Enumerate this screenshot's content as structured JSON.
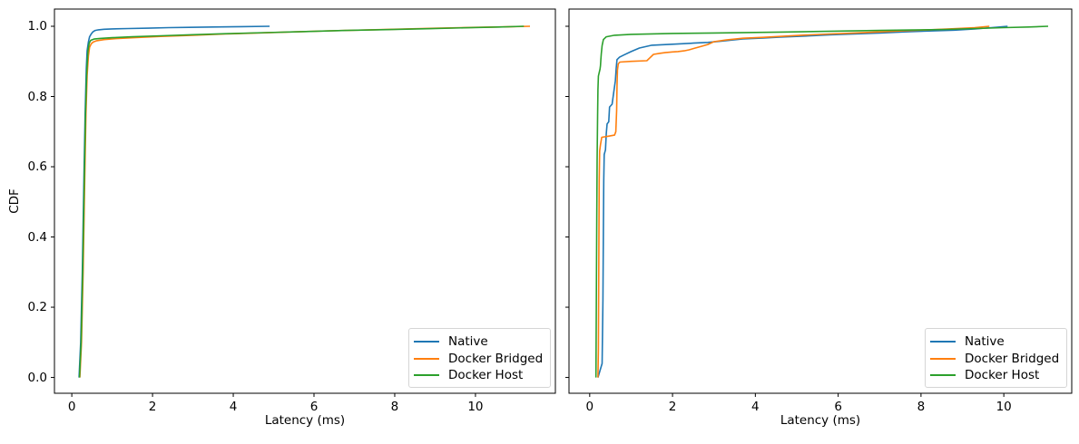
{
  "figure": {
    "background": "#ffffff"
  },
  "chart_data": [
    {
      "type": "line",
      "subtype": "cdf",
      "title": "",
      "xlabel": "Latency (ms)",
      "ylabel": "CDF",
      "xlim": [
        -0.43,
        11.98
      ],
      "ylim": [
        -0.045,
        1.049
      ],
      "grid": false,
      "xticks": {
        "values": [
          0,
          2,
          4,
          6,
          8,
          10
        ],
        "labels": [
          "0",
          "2",
          "4",
          "6",
          "8",
          "10"
        ],
        "show_labels": true
      },
      "yticks": {
        "values": [
          0.0,
          0.2,
          0.4,
          0.6,
          0.8,
          1.0
        ],
        "labels": [
          "0.0",
          "0.2",
          "0.4",
          "0.6",
          "0.8",
          "1.0"
        ],
        "show_labels": true
      },
      "legend": {
        "position": "lower right",
        "entries": [
          "Native",
          "Docker Bridged",
          "Docker Host"
        ]
      },
      "series": [
        {
          "name": "Native",
          "color": "#1f77b4",
          "points": [
            [
              0.18,
              0
            ],
            [
              0.22,
              0.1
            ],
            [
              0.26,
              0.3
            ],
            [
              0.3,
              0.57
            ],
            [
              0.33,
              0.75
            ],
            [
              0.36,
              0.88
            ],
            [
              0.38,
              0.93
            ],
            [
              0.41,
              0.955
            ],
            [
              0.44,
              0.97
            ],
            [
              0.48,
              0.978
            ],
            [
              0.52,
              0.984
            ],
            [
              0.58,
              0.988
            ],
            [
              0.66,
              0.99
            ],
            [
              0.8,
              0.9915
            ],
            [
              1.0,
              0.9925
            ],
            [
              1.4,
              0.9935
            ],
            [
              1.9,
              0.9945
            ],
            [
              2.4,
              0.996
            ],
            [
              2.9,
              0.997
            ],
            [
              3.5,
              0.998
            ],
            [
              4.2,
              0.999
            ],
            [
              4.9,
              1.0
            ]
          ]
        },
        {
          "name": "Docker Bridged",
          "color": "#ff7f0e",
          "points": [
            [
              0.2,
              0
            ],
            [
              0.24,
              0.1
            ],
            [
              0.28,
              0.3
            ],
            [
              0.32,
              0.57
            ],
            [
              0.35,
              0.75
            ],
            [
              0.38,
              0.86
            ],
            [
              0.41,
              0.915
            ],
            [
              0.44,
              0.94
            ],
            [
              0.48,
              0.95
            ],
            [
              0.53,
              0.955
            ],
            [
              0.62,
              0.959
            ],
            [
              0.8,
              0.962
            ],
            [
              1.1,
              0.965
            ],
            [
              1.6,
              0.968
            ],
            [
              2.2,
              0.971
            ],
            [
              3.0,
              0.9745
            ],
            [
              3.8,
              0.978
            ],
            [
              4.6,
              0.981
            ],
            [
              5.5,
              0.984
            ],
            [
              6.4,
              0.987
            ],
            [
              7.3,
              0.9895
            ],
            [
              8.2,
              0.992
            ],
            [
              9.1,
              0.9945
            ],
            [
              10.0,
              0.997
            ],
            [
              10.8,
              0.9985
            ],
            [
              11.35,
              1.0
            ]
          ]
        },
        {
          "name": "Docker Host",
          "color": "#2ca02c",
          "points": [
            [
              0.19,
              0
            ],
            [
              0.23,
              0.1
            ],
            [
              0.27,
              0.3
            ],
            [
              0.31,
              0.57
            ],
            [
              0.34,
              0.75
            ],
            [
              0.37,
              0.87
            ],
            [
              0.4,
              0.93
            ],
            [
              0.43,
              0.952
            ],
            [
              0.47,
              0.96
            ],
            [
              0.55,
              0.9635
            ],
            [
              0.7,
              0.9655
            ],
            [
              1.0,
              0.9675
            ],
            [
              1.5,
              0.97
            ],
            [
              2.2,
              0.973
            ],
            [
              3.0,
              0.976
            ],
            [
              3.9,
              0.979
            ],
            [
              4.8,
              0.982
            ],
            [
              5.8,
              0.985
            ],
            [
              6.8,
              0.988
            ],
            [
              7.8,
              0.9905
            ],
            [
              8.8,
              0.993
            ],
            [
              9.7,
              0.9955
            ],
            [
              10.6,
              0.998
            ],
            [
              11.2,
              1.0
            ]
          ]
        }
      ]
    },
    {
      "type": "line",
      "subtype": "cdf",
      "title": "",
      "xlabel": "Latency (ms)",
      "ylabel": "",
      "xlim": [
        -0.5,
        11.64
      ],
      "ylim": [
        -0.045,
        1.049
      ],
      "grid": false,
      "xticks": {
        "values": [
          0,
          2,
          4,
          6,
          8,
          10
        ],
        "labels": [
          "0",
          "2",
          "4",
          "6",
          "8",
          "10"
        ],
        "show_labels": true
      },
      "yticks": {
        "values": [
          0.0,
          0.2,
          0.4,
          0.6,
          0.8,
          1.0
        ],
        "labels": [],
        "show_labels": false
      },
      "legend": {
        "position": "lower right",
        "entries": [
          "Native",
          "Docker Bridged",
          "Docker Host"
        ]
      },
      "series": [
        {
          "name": "Native",
          "color": "#1f77b4",
          "points": [
            [
              0.2,
              0
            ],
            [
              0.3,
              0.04
            ],
            [
              0.32,
              0.22
            ],
            [
              0.33,
              0.42
            ],
            [
              0.34,
              0.56
            ],
            [
              0.35,
              0.635
            ],
            [
              0.38,
              0.648
            ],
            [
              0.4,
              0.695
            ],
            [
              0.42,
              0.722
            ],
            [
              0.46,
              0.728
            ],
            [
              0.48,
              0.77
            ],
            [
              0.54,
              0.778
            ],
            [
              0.58,
              0.812
            ],
            [
              0.62,
              0.845
            ],
            [
              0.64,
              0.88
            ],
            [
              0.66,
              0.905
            ],
            [
              0.72,
              0.912
            ],
            [
              0.82,
              0.918
            ],
            [
              1.0,
              0.928
            ],
            [
              1.2,
              0.938
            ],
            [
              1.5,
              0.946
            ],
            [
              2.0,
              0.949
            ],
            [
              2.5,
              0.952
            ],
            [
              2.85,
              0.954
            ],
            [
              3.2,
              0.958
            ],
            [
              3.7,
              0.964
            ],
            [
              4.2,
              0.9665
            ],
            [
              4.6,
              0.969
            ],
            [
              5.2,
              0.972
            ],
            [
              5.8,
              0.9755
            ],
            [
              6.4,
              0.978
            ],
            [
              7.0,
              0.981
            ],
            [
              7.6,
              0.984
            ],
            [
              8.2,
              0.9865
            ],
            [
              8.8,
              0.989
            ],
            [
              9.3,
              0.9925
            ],
            [
              9.7,
              0.996
            ],
            [
              10.09,
              1.0
            ]
          ]
        },
        {
          "name": "Docker Bridged",
          "color": "#ff7f0e",
          "points": [
            [
              0.2,
              0
            ],
            [
              0.21,
              0.08
            ],
            [
              0.22,
              0.35
            ],
            [
              0.23,
              0.56
            ],
            [
              0.24,
              0.645
            ],
            [
              0.26,
              0.663
            ],
            [
              0.29,
              0.684
            ],
            [
              0.45,
              0.687
            ],
            [
              0.6,
              0.69
            ],
            [
              0.63,
              0.7
            ],
            [
              0.65,
              0.76
            ],
            [
              0.66,
              0.828
            ],
            [
              0.67,
              0.875
            ],
            [
              0.69,
              0.893
            ],
            [
              0.73,
              0.898
            ],
            [
              1.0,
              0.9
            ],
            [
              1.38,
              0.902
            ],
            [
              1.45,
              0.91
            ],
            [
              1.54,
              0.92
            ],
            [
              1.7,
              0.923
            ],
            [
              1.82,
              0.925
            ],
            [
              2.0,
              0.927
            ],
            [
              2.13,
              0.928
            ],
            [
              2.28,
              0.93
            ],
            [
              2.4,
              0.933
            ],
            [
              2.55,
              0.938
            ],
            [
              2.7,
              0.943
            ],
            [
              2.85,
              0.948
            ],
            [
              3.0,
              0.956
            ],
            [
              3.3,
              0.961
            ],
            [
              3.7,
              0.966
            ],
            [
              4.2,
              0.9685
            ],
            [
              4.6,
              0.971
            ],
            [
              5.2,
              0.975
            ],
            [
              5.8,
              0.978
            ],
            [
              6.4,
              0.981
            ],
            [
              7.0,
              0.984
            ],
            [
              7.6,
              0.987
            ],
            [
              8.2,
              0.99
            ],
            [
              8.8,
              0.993
            ],
            [
              9.3,
              0.996
            ],
            [
              9.65,
              1.0
            ]
          ]
        },
        {
          "name": "Docker Host",
          "color": "#2ca02c",
          "points": [
            [
              0.15,
              0
            ],
            [
              0.16,
              0.2
            ],
            [
              0.17,
              0.45
            ],
            [
              0.18,
              0.62
            ],
            [
              0.19,
              0.74
            ],
            [
              0.2,
              0.82
            ],
            [
              0.21,
              0.858
            ],
            [
              0.23,
              0.868
            ],
            [
              0.25,
              0.878
            ],
            [
              0.26,
              0.888
            ],
            [
              0.27,
              0.905
            ],
            [
              0.28,
              0.922
            ],
            [
              0.3,
              0.945
            ],
            [
              0.33,
              0.962
            ],
            [
              0.4,
              0.97
            ],
            [
              0.6,
              0.9745
            ],
            [
              1.0,
              0.977
            ],
            [
              2.0,
              0.9795
            ],
            [
              3.0,
              0.981
            ],
            [
              4.0,
              0.9825
            ],
            [
              4.6,
              0.9835
            ],
            [
              5.4,
              0.985
            ],
            [
              6.2,
              0.9865
            ],
            [
              7.0,
              0.988
            ],
            [
              7.8,
              0.9895
            ],
            [
              8.6,
              0.991
            ],
            [
              9.3,
              0.9935
            ],
            [
              10.0,
              0.996
            ],
            [
              10.6,
              0.998
            ],
            [
              11.07,
              1.0
            ]
          ]
        }
      ]
    }
  ]
}
